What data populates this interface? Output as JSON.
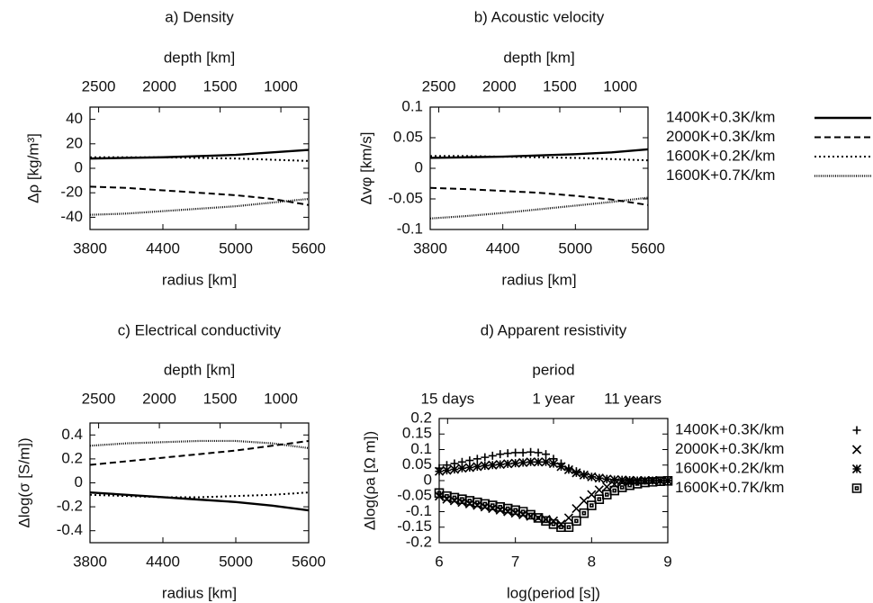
{
  "chart_data": [
    {
      "type": "line",
      "title": "a) Density",
      "x_label": "radius [km]",
      "x2_label": "depth [km]",
      "y_label": "Δρ [kg/m³]",
      "x": [
        3800,
        4100,
        4400,
        4700,
        5000,
        5300,
        5600
      ],
      "series": [
        {
          "color": "#000000",
          "dash": "solid",
          "values": [
            8,
            8.5,
            9,
            10,
            11,
            13,
            15
          ]
        },
        {
          "color": "#000000",
          "dash": "dashed",
          "values": [
            -15,
            -16,
            -18,
            -20,
            -22,
            -25,
            -30
          ]
        },
        {
          "color": "#000000",
          "dash": "dotted",
          "values": [
            9,
            9,
            9,
            8.5,
            8,
            7,
            6
          ]
        },
        {
          "color": "#000000",
          "dash": "fine",
          "values": [
            -38,
            -37,
            -35,
            -33,
            -31,
            -28,
            -25
          ]
        }
      ],
      "xlim": [
        3800,
        5600
      ],
      "xticks": [
        3800,
        4400,
        5000,
        5600
      ],
      "ylim": [
        -50,
        50
      ],
      "yticks": [
        -40,
        -20,
        0,
        20,
        40
      ],
      "x2lim": [
        2571,
        771
      ],
      "x2ticks": [
        2500,
        2000,
        1500,
        1000
      ]
    },
    {
      "type": "line",
      "title": "b) Acoustic velocity",
      "x_label": "radius [km]",
      "x2_label": "depth [km]",
      "y_label": "Δvφ [km/s]",
      "x": [
        3800,
        4100,
        4400,
        4700,
        5000,
        5300,
        5600
      ],
      "series": [
        {
          "name": "1400K+0.3K/km",
          "color": "#000000",
          "dash": "solid",
          "values": [
            0.017,
            0.018,
            0.019,
            0.021,
            0.023,
            0.026,
            0.031
          ]
        },
        {
          "name": "2000K+0.3K/km",
          "color": "#000000",
          "dash": "dashed",
          "values": [
            -0.032,
            -0.034,
            -0.037,
            -0.04,
            -0.045,
            -0.051,
            -0.06
          ]
        },
        {
          "name": "1600K+0.2K/km",
          "color": "#000000",
          "dash": "dotted",
          "values": [
            0.02,
            0.02,
            0.019,
            0.018,
            0.017,
            0.015,
            0.013
          ]
        },
        {
          "name": "1600K+0.7K/km",
          "color": "#000000",
          "dash": "fine",
          "values": [
            -0.082,
            -0.078,
            -0.073,
            -0.067,
            -0.061,
            -0.055,
            -0.048
          ]
        }
      ],
      "legend": "right-outside",
      "xlim": [
        3800,
        5600
      ],
      "xticks": [
        3800,
        4400,
        5000,
        5600
      ],
      "ylim": [
        -0.1,
        0.1
      ],
      "yticks": [
        -0.1,
        -0.05,
        0,
        0.05,
        0.1
      ],
      "x2lim": [
        2571,
        771
      ],
      "x2ticks": [
        2500,
        2000,
        1500,
        1000
      ]
    },
    {
      "type": "line",
      "title": "c) Electrical conductivity",
      "x_label": "radius [km]",
      "x2_label": "depth [km]",
      "y_label": "Δlog(σ [S/m])",
      "x": [
        3800,
        4100,
        4400,
        4700,
        5000,
        5300,
        5600
      ],
      "series": [
        {
          "color": "#000000",
          "dash": "solid",
          "values": [
            -0.08,
            -0.1,
            -0.12,
            -0.14,
            -0.16,
            -0.19,
            -0.23
          ]
        },
        {
          "color": "#000000",
          "dash": "dashed",
          "values": [
            0.15,
            0.18,
            0.21,
            0.24,
            0.27,
            0.31,
            0.35
          ]
        },
        {
          "color": "#000000",
          "dash": "dotted",
          "values": [
            -0.1,
            -0.11,
            -0.12,
            -0.12,
            -0.11,
            -0.1,
            -0.08
          ]
        },
        {
          "color": "#000000",
          "dash": "fine",
          "values": [
            0.31,
            0.33,
            0.34,
            0.35,
            0.35,
            0.33,
            0.29
          ]
        }
      ],
      "xlim": [
        3800,
        5600
      ],
      "xticks": [
        3800,
        4400,
        5000,
        5600
      ],
      "ylim": [
        -0.5,
        0.5
      ],
      "yticks": [
        -0.4,
        -0.2,
        0,
        0.2,
        0.4
      ],
      "x2lim": [
        2571,
        771
      ],
      "x2ticks": [
        2500,
        2000,
        1500,
        1000
      ]
    },
    {
      "type": "scatter",
      "title": "d) Apparent resistivity",
      "x_label": "log(period [s])",
      "x2_label": "period",
      "y_label": "Δlog(ρa [Ω m])",
      "x": [
        6.0,
        6.1,
        6.2,
        6.3,
        6.4,
        6.5,
        6.6,
        6.7,
        6.8,
        6.9,
        7.0,
        7.1,
        7.2,
        7.3,
        7.4,
        7.5,
        7.6,
        7.7,
        7.8,
        7.9,
        8.0,
        8.1,
        8.2,
        8.3,
        8.4,
        8.5,
        8.6,
        8.7,
        8.8,
        8.9,
        9.0
      ],
      "series": [
        {
          "name": "1400K+0.3K/km",
          "color": "#000000",
          "marker": "plus",
          "values": [
            0.04,
            0.05,
            0.055,
            0.06,
            0.065,
            0.07,
            0.075,
            0.08,
            0.085,
            0.088,
            0.09,
            0.09,
            0.092,
            0.09,
            0.085,
            0.07,
            0.055,
            0.04,
            0.03,
            0.02,
            0.012,
            0.008,
            0.005,
            0.003,
            0.002,
            0.001,
            0,
            0,
            0,
            0,
            0
          ]
        },
        {
          "name": "2000K+0.3K/km",
          "color": "#000000",
          "marker": "cross",
          "values": [
            -0.05,
            -0.06,
            -0.065,
            -0.07,
            -0.075,
            -0.08,
            -0.085,
            -0.09,
            -0.095,
            -0.1,
            -0.105,
            -0.11,
            -0.115,
            -0.12,
            -0.125,
            -0.13,
            -0.14,
            -0.12,
            -0.09,
            -0.065,
            -0.045,
            -0.03,
            -0.02,
            -0.012,
            -0.006,
            -0.003,
            0,
            0,
            0,
            0,
            0
          ]
        },
        {
          "name": "1600K+0.2K/km",
          "color": "#000000",
          "marker": "star",
          "values": [
            0.03,
            0.033,
            0.036,
            0.04,
            0.042,
            0.045,
            0.048,
            0.05,
            0.052,
            0.054,
            0.056,
            0.058,
            0.06,
            0.06,
            0.06,
            0.055,
            0.045,
            0.035,
            0.025,
            0.018,
            0.012,
            0.008,
            0.005,
            0.003,
            0.002,
            0.001,
            0,
            0,
            0,
            0,
            0
          ]
        },
        {
          "name": "1600K+0.7K/km",
          "color": "#000000",
          "marker": "square",
          "values": [
            -0.04,
            -0.05,
            -0.055,
            -0.06,
            -0.065,
            -0.07,
            -0.075,
            -0.08,
            -0.085,
            -0.09,
            -0.095,
            -0.1,
            -0.11,
            -0.12,
            -0.13,
            -0.14,
            -0.15,
            -0.15,
            -0.13,
            -0.105,
            -0.08,
            -0.06,
            -0.045,
            -0.032,
            -0.022,
            -0.015,
            -0.01,
            -0.006,
            -0.004,
            -0.002,
            -0.001
          ]
        }
      ],
      "legend": "right-outside",
      "xlim": [
        6,
        9
      ],
      "xticks": [
        6,
        7,
        8,
        9
      ],
      "ylim": [
        -0.2,
        0.2
      ],
      "yticks": [
        -0.2,
        -0.15,
        -0.1,
        -0.05,
        0,
        0.05,
        0.1,
        0.15,
        0.2
      ],
      "x2lim": [
        6,
        9
      ],
      "x2ticks": [
        {
          "value": 6.11,
          "label": "15 days"
        },
        {
          "value": 7.5,
          "label": "1 year"
        },
        {
          "value": 8.54,
          "label": "11 years"
        }
      ]
    }
  ]
}
